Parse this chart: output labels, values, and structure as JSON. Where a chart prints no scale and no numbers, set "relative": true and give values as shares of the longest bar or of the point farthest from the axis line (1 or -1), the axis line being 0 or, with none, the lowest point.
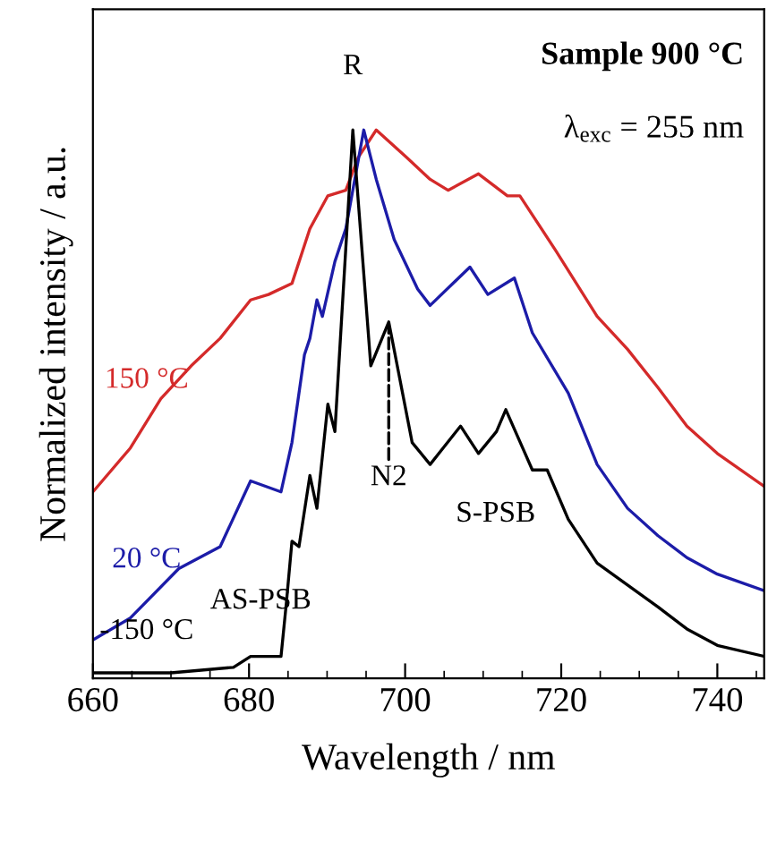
{
  "chart_data": {
    "type": "line",
    "relative": true,
    "xlabel": "Wavelength / nm",
    "ylabel": "Normalized intensity / a.u.",
    "xlim": [
      660,
      746
    ],
    "xticks": [
      660,
      680,
      700,
      720,
      740
    ],
    "grid": false,
    "legend": false,
    "marker": "none",
    "line_style": "solid",
    "series": [
      {
        "name": "150 °C",
        "color": "#d42a2a",
        "x": [
          660,
          664.8,
          668.7,
          672.6,
          676.3,
          680.2,
          682.5,
          685.5,
          687.8,
          690.1,
          692.4,
          694,
          696.3,
          700.2,
          703.2,
          705.5,
          709.4,
          713.1,
          714.7,
          719.3,
          724.6,
          728.5,
          732.4,
          736.1,
          740,
          746
        ],
        "values": [
          0.34,
          0.42,
          0.51,
          0.57,
          0.62,
          0.69,
          0.7,
          0.72,
          0.82,
          0.88,
          0.89,
          0.95,
          1.0,
          0.95,
          0.91,
          0.89,
          0.92,
          0.88,
          0.88,
          0.78,
          0.66,
          0.6,
          0.53,
          0.46,
          0.41,
          0.35
        ]
      },
      {
        "name": "20 °C",
        "color": "#1c1ca8",
        "x": [
          660,
          664.8,
          671,
          676.3,
          680.2,
          684.1,
          685.5,
          687.1,
          687.8,
          688.7,
          689.4,
          691,
          692.4,
          694.7,
          696.3,
          698.6,
          701.6,
          703.2,
          708.3,
          710.6,
          714,
          716.3,
          720.9,
          724.6,
          728.5,
          732.4,
          736.1,
          740,
          746
        ],
        "values": [
          0.07,
          0.11,
          0.2,
          0.24,
          0.36,
          0.34,
          0.43,
          0.59,
          0.62,
          0.69,
          0.66,
          0.76,
          0.82,
          1.0,
          0.91,
          0.8,
          0.71,
          0.68,
          0.75,
          0.7,
          0.73,
          0.63,
          0.52,
          0.39,
          0.31,
          0.26,
          0.22,
          0.19,
          0.16
        ]
      },
      {
        "name": "-150 °C",
        "color": "#000000",
        "x": [
          660,
          670,
          678,
          680.2,
          682.5,
          684.1,
          684.8,
          685.5,
          686.4,
          687.8,
          688.7,
          690.1,
          691,
          693.3,
          695.6,
          697.9,
          700.9,
          703.2,
          707.1,
          709.4,
          711.7,
          712.9,
          716.3,
          718.2,
          720.9,
          724.6,
          728.5,
          732.4,
          736.1,
          740,
          746
        ],
        "values": [
          0.01,
          0.01,
          0.02,
          0.04,
          0.04,
          0.04,
          0.14,
          0.25,
          0.24,
          0.37,
          0.31,
          0.5,
          0.45,
          1.0,
          0.57,
          0.65,
          0.43,
          0.39,
          0.46,
          0.41,
          0.45,
          0.49,
          0.38,
          0.38,
          0.29,
          0.21,
          0.17,
          0.13,
          0.09,
          0.06,
          0.04
        ]
      }
    ],
    "annotations": [
      {
        "text": "R",
        "x": 693.3,
        "y": 1.0
      },
      {
        "text": "N2",
        "x": 697.9,
        "y": 0.65
      },
      "AS-PSB",
      "S-PSB",
      "Sample 900 °C",
      "λ$_{exc}$ = 255 nm"
    ]
  }
}
